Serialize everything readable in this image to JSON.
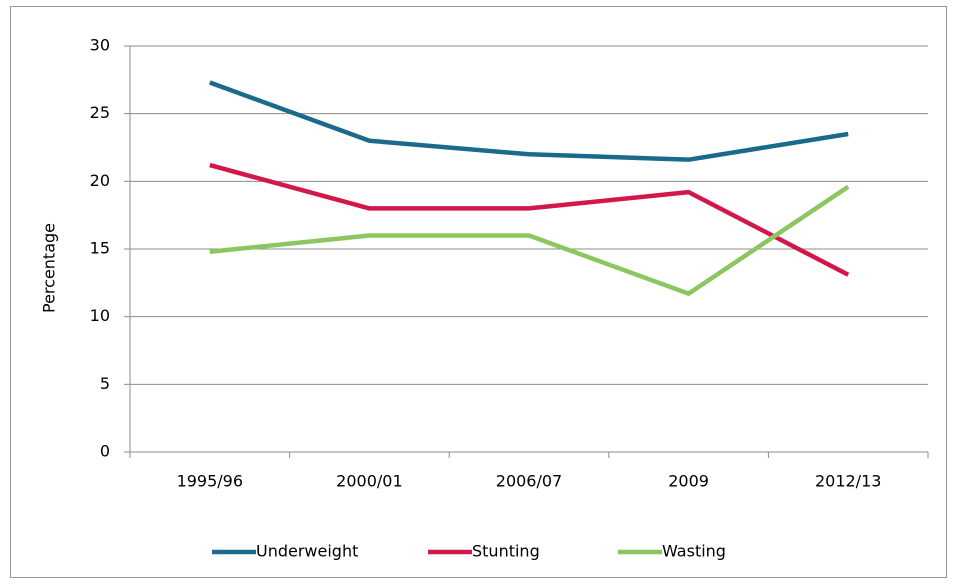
{
  "chart_data": {
    "type": "line",
    "y_label": "Percentage",
    "categories": [
      "1995/96",
      "2000/01",
      "2006/07",
      "2009",
      "2012/13"
    ],
    "series": [
      {
        "name": "Underweight",
        "color": "#1b6a8b",
        "values": [
          27.3,
          23.0,
          22.0,
          21.6,
          23.5
        ]
      },
      {
        "name": "Stunting",
        "color": "#d2184a",
        "values": [
          21.2,
          18.0,
          18.0,
          19.2,
          13.1
        ]
      },
      {
        "name": "Wasting",
        "color": "#8cc660",
        "values": [
          14.8,
          16.0,
          16.0,
          11.7,
          19.6
        ]
      }
    ],
    "ylim": [
      0,
      30
    ],
    "yticks": [
      0,
      5,
      10,
      15,
      20,
      25,
      30
    ],
    "grid": true,
    "legend": "bottom"
  }
}
